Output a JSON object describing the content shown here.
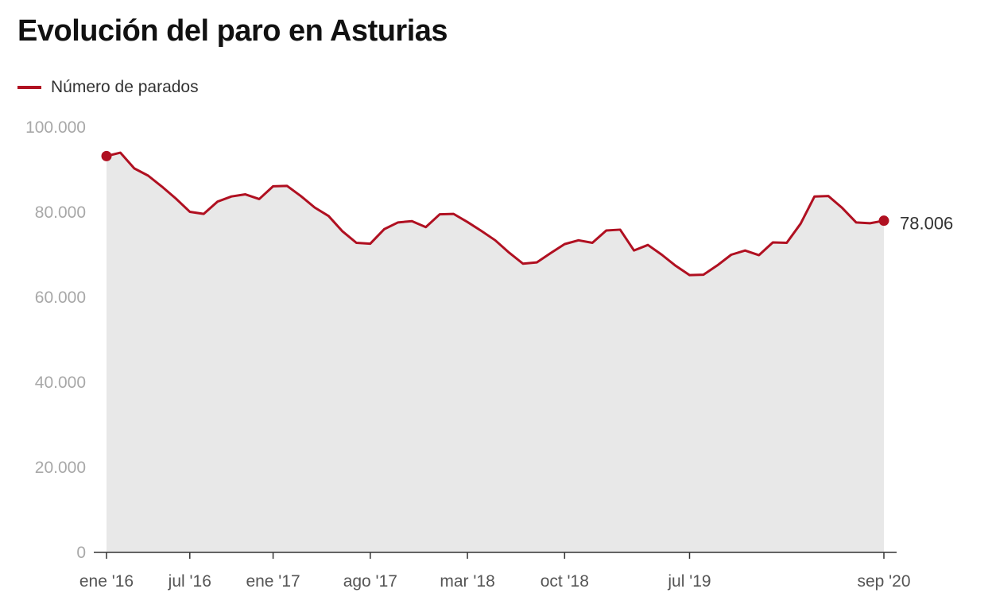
{
  "chart_data": {
    "type": "area",
    "title": "Evolución del paro en Asturias",
    "legend": [
      "Número de parados"
    ],
    "ylim": [
      0,
      100000
    ],
    "yticks": [
      0,
      20000,
      40000,
      60000,
      80000,
      100000
    ],
    "ytick_labels": [
      "0",
      "20.000",
      "40.000",
      "60.000",
      "80.000",
      "100.000"
    ],
    "xticks": [
      "ene '16",
      "jul '16",
      "ene '17",
      "ago '17",
      "mar '18",
      "oct '18",
      "jul '19",
      "sep '20"
    ],
    "xtick_index": [
      0,
      6,
      12,
      19,
      26,
      33,
      42,
      56
    ],
    "series": [
      {
        "name": "Número de parados",
        "color": "#b01021",
        "fill": "#e8e8e8",
        "x": [
          "2016-01",
          "2016-02",
          "2016-03",
          "2016-04",
          "2016-05",
          "2016-06",
          "2016-07",
          "2016-08",
          "2016-09",
          "2016-10",
          "2016-11",
          "2016-12",
          "2017-01",
          "2017-02",
          "2017-03",
          "2017-04",
          "2017-05",
          "2017-06",
          "2017-07",
          "2017-08",
          "2017-09",
          "2017-10",
          "2017-11",
          "2017-12",
          "2018-01",
          "2018-02",
          "2018-03",
          "2018-04",
          "2018-05",
          "2018-06",
          "2018-07",
          "2018-08",
          "2018-09",
          "2018-10",
          "2018-11",
          "2018-12",
          "2019-01",
          "2019-02",
          "2019-03",
          "2019-04",
          "2019-05",
          "2019-06",
          "2019-07",
          "2019-08",
          "2019-09",
          "2019-10",
          "2019-11",
          "2019-12",
          "2020-01",
          "2020-02",
          "2020-03",
          "2020-04",
          "2020-05",
          "2020-06",
          "2020-07",
          "2020-08",
          "2020-09"
        ],
        "values": [
          93200,
          94000,
          90300,
          88600,
          86000,
          83200,
          80100,
          79600,
          82500,
          83700,
          84200,
          83100,
          86100,
          86200,
          83800,
          81100,
          79100,
          75500,
          72800,
          72600,
          76000,
          77600,
          77900,
          76500,
          79500,
          79600,
          77700,
          75600,
          73400,
          70500,
          67900,
          68200,
          70400,
          72500,
          73400,
          72800,
          75700,
          75900,
          71000,
          72300,
          70000,
          67400,
          65200,
          65300,
          67500,
          70000,
          71000,
          69900,
          72900,
          72800,
          77300,
          83700,
          83800,
          81000,
          77600,
          77400,
          78006
        ]
      }
    ],
    "end_label": "78.006",
    "grid": false
  }
}
